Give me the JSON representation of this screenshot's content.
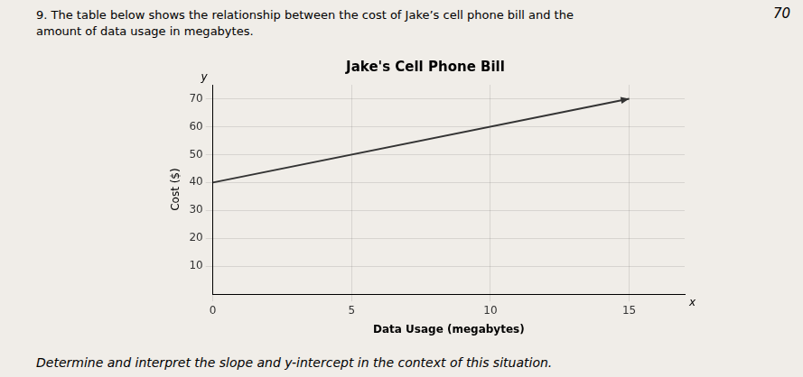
{
  "chart_data": {
    "type": "line",
    "title": "Jake's Cell Phone Bill",
    "xlabel": "Data Usage (megabytes)",
    "ylabel": "Cost ($)",
    "x": [
      0,
      15
    ],
    "values": [
      40,
      70
    ],
    "color": "#333333",
    "xlim": [
      0,
      17
    ],
    "ylim": [
      0,
      75
    ],
    "xticks": [
      0,
      5,
      10,
      15
    ],
    "yticks": [
      10,
      20,
      30,
      40,
      50,
      60,
      70
    ],
    "grid": true,
    "x_axis_letter": "x",
    "y_axis_letter": "y",
    "question_text": "9. The table below shows the relationship between the cost of Jake’s cell phone bill and the\namount of data usage in megabytes.",
    "page_number": "70",
    "bottom_text": "Determine and interpret the slope and y-intercept in the context of this situation."
  }
}
